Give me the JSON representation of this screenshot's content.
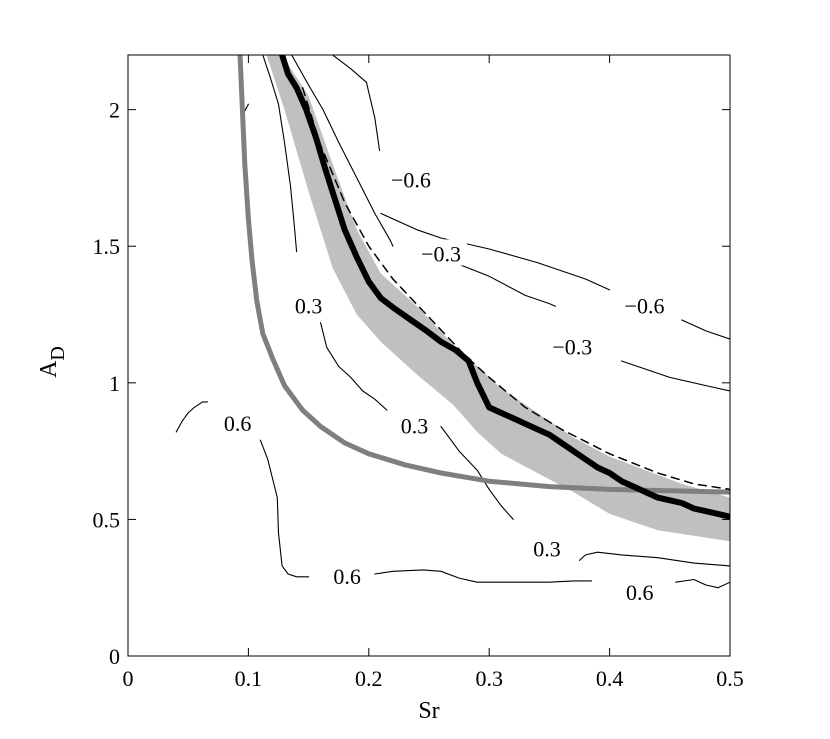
{
  "chart_data": {
    "type": "line",
    "xlabel": "Sr",
    "ylabel": "A",
    "ylabel_sub": "D",
    "xlim": [
      0,
      0.5
    ],
    "ylim": [
      0,
      2.2
    ],
    "x_ticks": [
      0,
      0.1,
      0.2,
      0.3,
      0.4,
      0.5
    ],
    "x_tick_labels": [
      "0",
      "0.1",
      "0.2",
      "0.3",
      "0.4",
      "0.5"
    ],
    "y_ticks": [
      0,
      0.5,
      1,
      1.5,
      2
    ],
    "y_tick_labels": [
      "0",
      "0.5",
      "1",
      "1.5",
      "2"
    ],
    "grid": false,
    "colors": {
      "thick_black": "#000000",
      "thick_gray": "#7f7f7f",
      "band_fill": "#c0c0c0",
      "contour": "#000000",
      "dashed": "#000000"
    },
    "band": {
      "upper": [
        [
          0.128,
          2.2
        ],
        [
          0.15,
          2.05
        ],
        [
          0.17,
          1.8
        ],
        [
          0.19,
          1.56
        ],
        [
          0.21,
          1.4
        ],
        [
          0.24,
          1.28
        ],
        [
          0.27,
          1.14
        ],
        [
          0.29,
          1.06
        ],
        [
          0.31,
          0.98
        ],
        [
          0.34,
          0.89
        ],
        [
          0.37,
          0.8
        ],
        [
          0.4,
          0.73
        ],
        [
          0.43,
          0.68
        ],
        [
          0.46,
          0.63
        ],
        [
          0.5,
          0.58
        ]
      ],
      "lower": [
        [
          0.115,
          2.2
        ],
        [
          0.13,
          2.0
        ],
        [
          0.15,
          1.7
        ],
        [
          0.17,
          1.42
        ],
        [
          0.19,
          1.25
        ],
        [
          0.21,
          1.15
        ],
        [
          0.24,
          1.03
        ],
        [
          0.27,
          0.92
        ],
        [
          0.29,
          0.82
        ],
        [
          0.31,
          0.74
        ],
        [
          0.34,
          0.67
        ],
        [
          0.37,
          0.6
        ],
        [
          0.4,
          0.52
        ],
        [
          0.44,
          0.46
        ],
        [
          0.5,
          0.42
        ]
      ]
    },
    "series": [
      {
        "style": "thick-black",
        "x": [
          0.128,
          0.133,
          0.14,
          0.148,
          0.156,
          0.164,
          0.172,
          0.18,
          0.19,
          0.2,
          0.21,
          0.222,
          0.235,
          0.248,
          0.26,
          0.272,
          0.283,
          0.29,
          0.3,
          0.31,
          0.32,
          0.33,
          0.34,
          0.35,
          0.36,
          0.37,
          0.38,
          0.39,
          0.4,
          0.41,
          0.42,
          0.43,
          0.44,
          0.45,
          0.46,
          0.47,
          0.48,
          0.49,
          0.5
        ],
        "y": [
          2.2,
          2.13,
          2.08,
          2.0,
          1.9,
          1.78,
          1.67,
          1.56,
          1.46,
          1.37,
          1.31,
          1.27,
          1.23,
          1.19,
          1.15,
          1.12,
          1.08,
          1.0,
          0.91,
          0.89,
          0.87,
          0.85,
          0.83,
          0.81,
          0.78,
          0.75,
          0.72,
          0.69,
          0.67,
          0.64,
          0.62,
          0.6,
          0.58,
          0.57,
          0.56,
          0.54,
          0.53,
          0.52,
          0.51
        ]
      },
      {
        "style": "thick-gray",
        "x": [
          0.093,
          0.095,
          0.097,
          0.1,
          0.103,
          0.107,
          0.112,
          0.12,
          0.13,
          0.145,
          0.16,
          0.18,
          0.2,
          0.23,
          0.26,
          0.3,
          0.35,
          0.4,
          0.45,
          0.5
        ],
        "y": [
          2.2,
          2.0,
          1.8,
          1.6,
          1.45,
          1.3,
          1.18,
          1.09,
          0.99,
          0.9,
          0.84,
          0.78,
          0.74,
          0.7,
          0.67,
          0.64,
          0.62,
          0.61,
          0.605,
          0.6
        ]
      },
      {
        "style": "dashed",
        "x": [
          0.145,
          0.16,
          0.18,
          0.2,
          0.22,
          0.25,
          0.28,
          0.3,
          0.33,
          0.36,
          0.4,
          0.44,
          0.47,
          0.5
        ],
        "y": [
          2.08,
          1.87,
          1.66,
          1.5,
          1.38,
          1.24,
          1.1,
          1.02,
          0.91,
          0.83,
          0.74,
          0.67,
          0.63,
          0.61
        ]
      }
    ],
    "contours": [
      {
        "x": [
          0.17,
          0.185,
          0.198,
          0.205,
          0.209
        ],
        "y": [
          2.2,
          2.15,
          2.1,
          1.97,
          1.85
        ]
      },
      {
        "x": [
          0.21,
          0.24,
          0.26,
          0.3,
          0.34,
          0.38,
          0.4
        ],
        "y": [
          1.62,
          1.56,
          1.53,
          1.49,
          1.44,
          1.38,
          1.34
        ]
      },
      {
        "x": [
          0.46,
          0.48,
          0.5
        ],
        "y": [
          1.23,
          1.19,
          1.16
        ]
      },
      {
        "x": [
          0.136,
          0.15,
          0.162,
          0.175,
          0.19,
          0.205,
          0.218,
          0.22
        ],
        "y": [
          2.2,
          2.09,
          2.0,
          1.88,
          1.75,
          1.62,
          1.52,
          1.5
        ]
      },
      {
        "x": [
          0.26,
          0.3,
          0.33,
          0.35,
          0.355
        ],
        "y": [
          1.46,
          1.39,
          1.32,
          1.29,
          1.28
        ]
      },
      {
        "x": [
          0.41,
          0.45,
          0.48,
          0.5
        ],
        "y": [
          1.08,
          1.02,
          0.99,
          0.97
        ]
      },
      {
        "x": [
          0.112,
          0.118,
          0.125,
          0.13,
          0.135,
          0.138,
          0.14
        ],
        "y": [
          2.2,
          2.12,
          2.02,
          1.88,
          1.72,
          1.58,
          1.48
        ]
      },
      {
        "x": [
          0.16,
          0.165,
          0.175,
          0.185,
          0.195,
          0.205,
          0.215
        ],
        "y": [
          1.22,
          1.13,
          1.06,
          1.02,
          0.97,
          0.94,
          0.9
        ]
      },
      {
        "x": [
          0.26,
          0.275,
          0.29,
          0.3,
          0.31,
          0.32
        ],
        "y": [
          0.84,
          0.75,
          0.68,
          0.61,
          0.55,
          0.5
        ]
      },
      {
        "x": [
          0.095,
          0.1
        ],
        "y": [
          1.98,
          2.02
        ]
      },
      {
        "x": [
          0.04,
          0.045,
          0.05,
          0.055,
          0.062,
          0.066
        ],
        "y": [
          0.82,
          0.86,
          0.89,
          0.91,
          0.93,
          0.93
        ]
      },
      {
        "x": [
          0.11,
          0.116,
          0.12,
          0.124,
          0.125,
          0.128,
          0.133,
          0.14,
          0.15
        ],
        "y": [
          0.79,
          0.72,
          0.65,
          0.58,
          0.45,
          0.33,
          0.3,
          0.29,
          0.29
        ]
      },
      {
        "x": [
          0.205,
          0.22,
          0.245,
          0.26,
          0.275,
          0.29,
          0.31,
          0.33,
          0.35,
          0.37,
          0.385
        ],
        "y": [
          0.3,
          0.31,
          0.315,
          0.31,
          0.285,
          0.27,
          0.27,
          0.27,
          0.27,
          0.275,
          0.275
        ]
      },
      {
        "x": [
          0.375,
          0.38,
          0.39,
          0.41,
          0.44,
          0.47,
          0.5
        ],
        "y": [
          0.35,
          0.37,
          0.38,
          0.37,
          0.36,
          0.34,
          0.33
        ]
      },
      {
        "x": [
          0.455,
          0.47,
          0.48,
          0.49,
          0.5
        ],
        "y": [
          0.27,
          0.28,
          0.26,
          0.25,
          0.27
        ]
      }
    ],
    "annotations": [
      {
        "text": "−0.6",
        "x": 0.235,
        "y": 1.74
      },
      {
        "text": "−0.3",
        "x": 0.26,
        "y": 1.47
      },
      {
        "text": "−0.6",
        "x": 0.429,
        "y": 1.28
      },
      {
        "text": "−0.3",
        "x": 0.369,
        "y": 1.13
      },
      {
        "text": "0.3",
        "x": 0.15,
        "y": 1.28
      },
      {
        "text": "0.3",
        "x": 0.238,
        "y": 0.84
      },
      {
        "text": "0.6",
        "x": 0.091,
        "y": 0.85
      },
      {
        "text": "0.3",
        "x": 0.348,
        "y": 0.39
      },
      {
        "text": "0.6",
        "x": 0.182,
        "y": 0.29
      },
      {
        "text": "0.6",
        "x": 0.425,
        "y": 0.23
      }
    ]
  }
}
